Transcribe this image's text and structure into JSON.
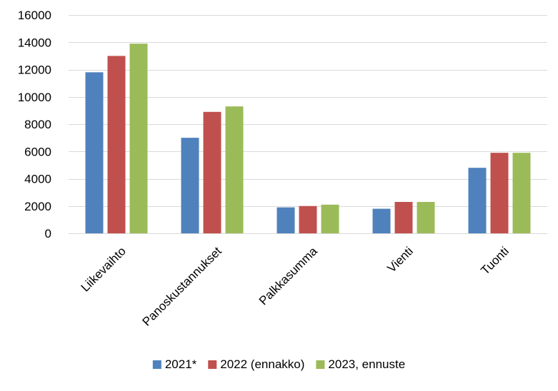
{
  "chart_data": {
    "type": "bar",
    "categories": [
      "Liikevaihto",
      "Panoskustannukset",
      "Palkkasumma",
      "Vienti",
      "Tuonti"
    ],
    "series": [
      {
        "name": "2021*",
        "color": "#4F81BD",
        "values": [
          11800,
          7000,
          1900,
          1800,
          4800
        ]
      },
      {
        "name": "2022 (ennakko)",
        "color": "#C0504D",
        "values": [
          13000,
          8900,
          2000,
          2300,
          5900
        ]
      },
      {
        "name": "2023, ennuste",
        "color": "#9BBB59",
        "values": [
          13900,
          9300,
          2100,
          2300,
          5900
        ]
      }
    ],
    "ylim": [
      0,
      16000
    ],
    "yticks": [
      0,
      2000,
      4000,
      6000,
      8000,
      10000,
      12000,
      14000,
      16000
    ],
    "grid": true,
    "legend_position": "bottom"
  }
}
